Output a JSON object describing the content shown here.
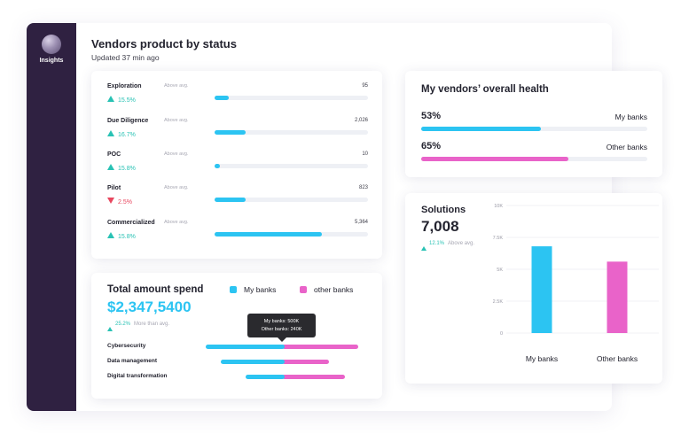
{
  "sidebar": {
    "label": "Insights"
  },
  "header": {
    "title": "Vendors product by status",
    "updated": "Updated 37 min ago"
  },
  "status_rows": [
    {
      "name": "Exploration",
      "above": "Above avg.",
      "count": "95",
      "pct": "15.5%",
      "trend": "up",
      "fill": 0.09
    },
    {
      "name": "Due Diligence",
      "above": "Above avg.",
      "count": "2,026",
      "pct": "16.7%",
      "trend": "up",
      "fill": 0.2
    },
    {
      "name": "POC",
      "above": "Above avg.",
      "count": "10",
      "pct": "15.8%",
      "trend": "up",
      "fill": 0.035
    },
    {
      "name": "Pilot",
      "above": "Above avg.",
      "count": "823",
      "pct": "2.5%",
      "trend": "down",
      "fill": 0.2
    },
    {
      "name": "Commercialized",
      "above": "Above avg.",
      "count": "5,364",
      "pct": "15.8%",
      "trend": "up",
      "fill": 0.7
    }
  ],
  "health": {
    "title": "My vendors’ overall health",
    "rows": [
      {
        "pct": "53%",
        "label": "My banks",
        "value": 0.53,
        "color": "#2cc4f2"
      },
      {
        "pct": "65%",
        "label": "Other banks",
        "value": 0.65,
        "color": "#e963c9"
      }
    ]
  },
  "spend": {
    "title": "Total amount spend",
    "legend": [
      {
        "label": "My banks",
        "color": "#2cc4f2"
      },
      {
        "label": "other banks",
        "color": "#e963c9"
      }
    ],
    "amount": "$2,347,5400",
    "pct": "25.2%",
    "more": "More than avg.",
    "tooltip": {
      "line1": "My banks: 500K",
      "line2": "Other banks: 240K"
    },
    "categories": [
      {
        "name": "Cybersecurity",
        "my": 0.5,
        "other": 0.5
      },
      {
        "name": "Data management",
        "my": 0.4,
        "other": 0.31
      },
      {
        "name": "Digital transformation",
        "my": 0.24,
        "other": 0.41
      }
    ]
  },
  "solutions": {
    "title": "Solutions",
    "value": "7,008",
    "pct": "12.1%",
    "more": "Above avg."
  },
  "chart_data": {
    "type": "bar",
    "categories": [
      "My banks",
      "Other banks"
    ],
    "values": [
      6800,
      5600
    ],
    "colors": [
      "#2cc4f2",
      "#e963c9"
    ],
    "yticks": [
      "0",
      "2.5K",
      "5K",
      "7.5K",
      "10K"
    ],
    "ylim": [
      0,
      10000
    ],
    "grid": true
  }
}
